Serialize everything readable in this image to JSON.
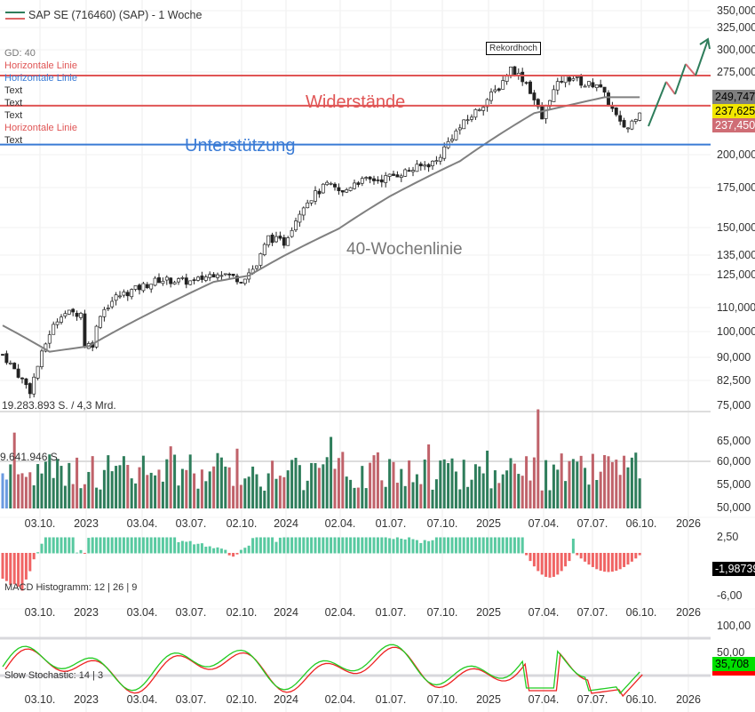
{
  "header": {
    "title": "SAP SE (716460) (SAP) - 1 Woche"
  },
  "legend": [
    {
      "label": "GD: 40",
      "color": "#777777"
    },
    {
      "label": "Horizontale Linie",
      "color": "#e05555"
    },
    {
      "label": "Horizontale Linie",
      "color": "#3a7bd5"
    },
    {
      "label": "Text",
      "color": "#333333"
    },
    {
      "label": "Text",
      "color": "#333333"
    },
    {
      "label": "Text",
      "color": "#333333"
    },
    {
      "label": "Horizontale Linie",
      "color": "#e05555"
    },
    {
      "label": "Text",
      "color": "#333333"
    }
  ],
  "annotations": {
    "record": "Rekordhoch",
    "resistance": "Widerstände",
    "support": "Unterstützung",
    "ma_label": "40-Wochenlinie"
  },
  "price_axis": [
    "350,000",
    "325,000",
    "300,000",
    "275,000",
    "200,000",
    "175,000",
    "150,000",
    "135,000",
    "125,000",
    "110,000",
    "100,000",
    "90,000",
    "82,500",
    "75,000"
  ],
  "price_tags": {
    "ma": "249,747",
    "last": "237,625",
    "low": "237,450"
  },
  "volume": {
    "label_total": "19.283.893 S. / 4,3 Mrd.",
    "label_avg": "9.641.946 S.",
    "axis": [
      "65,000",
      "60,000",
      "55,000",
      "50,000"
    ]
  },
  "macd": {
    "label": "MACD Histogramm: 12 | 26 | 9",
    "axis": [
      "2,50",
      "-6,00"
    ],
    "value": "-1,98739"
  },
  "stoch": {
    "label": "Slow Stochastic: 14 | 3",
    "axis": [
      "100,00",
      "50,00"
    ],
    "value": "35,708"
  },
  "x_axis": [
    "03.10.",
    "2023",
    "03.04.",
    "03.07.",
    "02.10.",
    "2024",
    "02.04.",
    "01.07.",
    "07.10.",
    "2025",
    "07.04.",
    "07.07.",
    "06.10.",
    "2026"
  ],
  "colors": {
    "up": "#2e7d5b",
    "down": "#c0626a",
    "resistance": "#e05555",
    "support": "#3a7bd5",
    "ma": "#808080"
  },
  "chart_data": {
    "type": "candlestick",
    "title": "SAP SE (716460) (SAP) - 1 Woche",
    "scale": "log",
    "ylim": [
      75,
      350
    ],
    "close_path_week_k": [
      [
        0,
        92
      ],
      [
        7,
        80
      ],
      [
        12,
        100
      ],
      [
        15,
        108
      ],
      [
        20,
        108
      ],
      [
        20,
        95
      ],
      [
        23,
        96
      ],
      [
        25,
        108
      ],
      [
        29,
        115
      ],
      [
        36,
        120
      ],
      [
        40,
        123
      ],
      [
        49,
        122
      ],
      [
        55,
        127
      ],
      [
        61,
        123
      ],
      [
        65,
        130
      ],
      [
        68,
        145
      ],
      [
        72,
        142
      ],
      [
        77,
        165
      ],
      [
        83,
        178
      ],
      [
        87,
        172
      ],
      [
        90,
        180
      ],
      [
        97,
        182
      ],
      [
        104,
        188
      ],
      [
        111,
        195
      ],
      [
        115,
        215
      ],
      [
        122,
        240
      ],
      [
        127,
        260
      ],
      [
        130,
        280
      ],
      [
        134,
        265
      ],
      [
        138,
        230
      ],
      [
        140,
        250
      ],
      [
        143,
        268
      ],
      [
        146,
        270
      ],
      [
        149,
        262
      ],
      [
        152,
        264
      ],
      [
        155,
        245
      ],
      [
        158,
        225
      ],
      [
        160,
        222
      ],
      [
        163,
        238
      ]
    ],
    "ma40_path_week_k": [
      [
        0,
        103
      ],
      [
        12,
        93
      ],
      [
        22,
        95
      ],
      [
        40,
        110
      ],
      [
        54,
        122
      ],
      [
        63,
        125
      ],
      [
        72,
        135
      ],
      [
        86,
        150
      ],
      [
        99,
        170
      ],
      [
        117,
        195
      ],
      [
        136,
        235
      ],
      [
        154,
        250
      ],
      [
        163,
        250
      ]
    ],
    "horizontal_lines_k": {
      "resistance": [
        272,
        242
      ],
      "support": [
        208
      ]
    },
    "last_close_k": 237.625
  }
}
